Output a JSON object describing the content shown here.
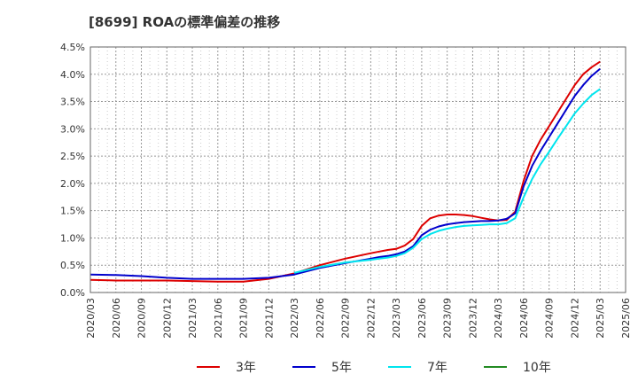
{
  "chart_data": {
    "type": "line",
    "title": "[8699]  ROAの標準偏差の推移",
    "xlabel": "",
    "ylabel": "",
    "x_ticks": [
      "2020/03",
      "2020/06",
      "2020/09",
      "2020/12",
      "2021/03",
      "2021/06",
      "2021/09",
      "2021/12",
      "2022/03",
      "2022/06",
      "2022/09",
      "2022/12",
      "2023/03",
      "2023/06",
      "2023/09",
      "2023/12",
      "2024/03",
      "2024/06",
      "2024/09",
      "2024/12",
      "2025/03",
      "2025/06"
    ],
    "y_ticks": [
      "0.0%",
      "0.5%",
      "1.0%",
      "1.5%",
      "2.0%",
      "2.5%",
      "3.0%",
      "3.5%",
      "4.0%",
      "4.5%"
    ],
    "ylim": [
      0,
      4.5
    ],
    "y_unit": "%",
    "grid": true,
    "legend_position": "bottom",
    "series": [
      {
        "name": "3年",
        "color": "#dd0000",
        "x": [
          "2020/03",
          "2020/06",
          "2020/09",
          "2020/12",
          "2021/03",
          "2021/06",
          "2021/09",
          "2021/12",
          "2022/03",
          "2022/06",
          "2022/09",
          "2022/12",
          "2023/01",
          "2023/02",
          "2023/03",
          "2023/04",
          "2023/05",
          "2023/06",
          "2023/07",
          "2023/08",
          "2023/09",
          "2023/10",
          "2023/11",
          "2023/12",
          "2024/01",
          "2024/02",
          "2024/03",
          "2024/04",
          "2024/05",
          "2024/06",
          "2024/07",
          "2024/08",
          "2024/09",
          "2024/10",
          "2024/11",
          "2024/12",
          "2025/01",
          "2025/02",
          "2025/03"
        ],
        "y": [
          0.23,
          0.22,
          0.22,
          0.22,
          0.21,
          0.2,
          0.2,
          0.25,
          0.35,
          0.5,
          0.62,
          0.72,
          0.75,
          0.78,
          0.8,
          0.86,
          0.98,
          1.22,
          1.36,
          1.41,
          1.43,
          1.43,
          1.42,
          1.4,
          1.37,
          1.34,
          1.32,
          1.33,
          1.48,
          2.05,
          2.5,
          2.8,
          3.05,
          3.3,
          3.55,
          3.8,
          4.0,
          4.13,
          4.23
        ]
      },
      {
        "name": "5年",
        "color": "#0000cc",
        "x": [
          "2020/03",
          "2020/06",
          "2020/09",
          "2020/12",
          "2021/03",
          "2021/06",
          "2021/09",
          "2021/12",
          "2022/03",
          "2022/06",
          "2022/09",
          "2022/12",
          "2023/01",
          "2023/02",
          "2023/03",
          "2023/04",
          "2023/05",
          "2023/06",
          "2023/07",
          "2023/08",
          "2023/09",
          "2023/10",
          "2023/11",
          "2023/12",
          "2024/01",
          "2024/02",
          "2024/03",
          "2024/04",
          "2024/05",
          "2024/06",
          "2024/07",
          "2024/08",
          "2024/09",
          "2024/10",
          "2024/11",
          "2024/12",
          "2025/01",
          "2025/02",
          "2025/03"
        ],
        "y": [
          0.33,
          0.32,
          0.3,
          0.27,
          0.25,
          0.25,
          0.25,
          0.27,
          0.33,
          0.45,
          0.54,
          0.62,
          0.65,
          0.67,
          0.7,
          0.75,
          0.85,
          1.05,
          1.15,
          1.21,
          1.25,
          1.27,
          1.29,
          1.3,
          1.31,
          1.31,
          1.32,
          1.35,
          1.45,
          1.95,
          2.32,
          2.6,
          2.85,
          3.1,
          3.35,
          3.6,
          3.8,
          3.97,
          4.1
        ]
      },
      {
        "name": "7年",
        "color": "#00e5ee",
        "x": [
          "2022/03",
          "2022/06",
          "2022/09",
          "2022/12",
          "2023/01",
          "2023/02",
          "2023/03",
          "2023/04",
          "2023/05",
          "2023/06",
          "2023/07",
          "2023/08",
          "2023/09",
          "2023/10",
          "2023/11",
          "2023/12",
          "2024/01",
          "2024/02",
          "2024/03",
          "2024/04",
          "2024/05",
          "2024/06",
          "2024/07",
          "2024/08",
          "2024/09",
          "2024/10",
          "2024/11",
          "2024/12",
          "2025/01",
          "2025/02",
          "2025/03"
        ],
        "y": [
          0.36,
          0.47,
          0.55,
          0.6,
          0.62,
          0.64,
          0.67,
          0.72,
          0.82,
          0.98,
          1.07,
          1.13,
          1.17,
          1.2,
          1.22,
          1.23,
          1.24,
          1.25,
          1.25,
          1.27,
          1.36,
          1.75,
          2.08,
          2.35,
          2.58,
          2.82,
          3.05,
          3.28,
          3.46,
          3.62,
          3.73
        ]
      },
      {
        "name": "10年",
        "color": "#228b22",
        "x": [],
        "y": []
      }
    ]
  }
}
